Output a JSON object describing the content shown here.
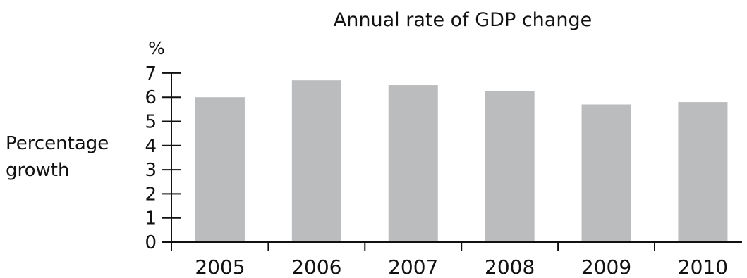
{
  "chart_data": {
    "type": "bar",
    "title": "Annual rate of GDP change",
    "unit_label": "%",
    "ylabel": [
      "Percentage",
      "growth"
    ],
    "categories": [
      "2005",
      "2006",
      "2007",
      "2008",
      "2009",
      "2010"
    ],
    "values": [
      6.0,
      6.7,
      6.5,
      6.25,
      5.7,
      5.8
    ],
    "ylim": [
      0,
      7
    ],
    "yticks": [
      "0",
      "1",
      "2",
      "3",
      "4",
      "5",
      "6",
      "7"
    ],
    "bar_color": "#bbbcbe",
    "grid": false
  }
}
